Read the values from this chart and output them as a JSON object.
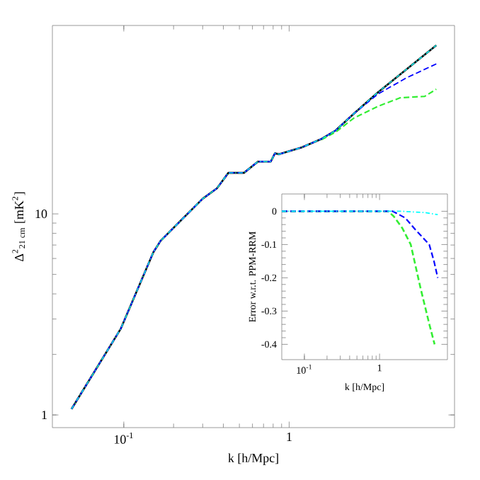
{
  "chart_data": [
    {
      "type": "line",
      "xlabel": "k [h/Mpc]",
      "ylabel": "Δ$^{2}$$_{21 cm}$ [mK$^{2}$]",
      "log": "xy",
      "xlim": [
        0.037,
        10
      ],
      "ylim": [
        0.865,
        86.5
      ],
      "xticks": [
        {
          "value": 0.1,
          "label": "10$^{-1}$"
        },
        1
      ],
      "yticks": [
        1,
        10
      ],
      "series": [
        {
          "color": "#000000",
          "line_style": "solid",
          "x": [
            0.0483,
            0.096,
            0.151,
            0.167,
            0.3,
            0.366,
            0.429,
            0.533,
            0.648,
            0.774,
            0.82,
            0.87,
            1.19,
            1.57,
            1.91,
            2.47,
            3.45,
            7.76
          ],
          "values": [
            1.07,
            2.69,
            6.45,
            7.35,
            11.9,
            13.4,
            16.0,
            16.0,
            18.2,
            18.2,
            20.0,
            19.8,
            21.4,
            23.6,
            26.0,
            31.6,
            40.3,
            68.9
          ]
        },
        {
          "color": "#33ee33",
          "line_style": "dashed",
          "x": [
            1.57,
            1.91,
            2.47,
            3.45,
            4.7,
            6.6,
            7.76
          ],
          "values": [
            23.4,
            25.5,
            30.0,
            34.3,
            37.8,
            38.4,
            41.7
          ]
        },
        {
          "color": "#0000ff",
          "line_style": "dashed",
          "x": [
            0.0483,
            0.096,
            0.151,
            0.167,
            0.3,
            0.366,
            0.429,
            0.533,
            0.648,
            0.774,
            0.82,
            0.87,
            1.19,
            1.57,
            1.91,
            2.47,
            3.45,
            5.1,
            7.76
          ],
          "values": [
            1.07,
            2.69,
            6.45,
            7.35,
            11.9,
            13.4,
            16.0,
            16.0,
            18.2,
            18.2,
            20.0,
            19.8,
            21.4,
            23.6,
            26.0,
            31.6,
            39.5,
            47.4,
            55.7
          ]
        },
        {
          "color": "#00ffff",
          "line_style": "dotted",
          "x": [
            0.0483,
            0.096,
            0.151,
            0.167,
            0.3,
            0.366,
            0.429,
            0.533,
            0.648,
            0.774,
            0.82,
            0.87,
            1.19,
            1.57,
            1.91,
            2.47,
            3.45,
            7.76
          ],
          "values": [
            1.07,
            2.69,
            6.45,
            7.35,
            11.9,
            13.4,
            16.0,
            16.0,
            18.2,
            18.2,
            20.0,
            19.8,
            21.4,
            23.6,
            26.0,
            31.6,
            40.3,
            68.9
          ]
        }
      ]
    },
    {
      "type": "line",
      "xlabel": "k [h/Mpc]",
      "ylabel": "Error w.r.t. PPM-RRM",
      "log": "x",
      "xlim": [
        0.05,
        8
      ],
      "ylim": [
        -0.446,
        0.052
      ],
      "xticks": [
        {
          "value": 0.1,
          "label": "10$^{-1}$"
        },
        1
      ],
      "yticks": [
        0,
        -0.1,
        -0.2,
        -0.3,
        -0.4
      ],
      "series": [
        {
          "color": "#33ee33",
          "line_style": "dashed",
          "x": [
            0.05,
            1.3,
            1.54,
            2.0,
            2.6,
            3.5,
            4.6,
            5.4
          ],
          "values": [
            0,
            0,
            -0.015,
            -0.05,
            -0.1,
            -0.23,
            -0.34,
            -0.4
          ]
        },
        {
          "color": "#0000ff",
          "line_style": "dashed",
          "x": [
            0.05,
            1.5,
            2.2,
            2.96,
            3.8,
            4.58,
            5.3,
            5.94
          ],
          "values": [
            0,
            0,
            -0.02,
            -0.054,
            -0.08,
            -0.1,
            -0.15,
            -0.2
          ]
        },
        {
          "color": "#00ffff",
          "line_style": "dotted",
          "x": [
            0.05,
            2.0,
            4.0,
            5.94
          ],
          "values": [
            0,
            0,
            -0.004,
            -0.01
          ]
        }
      ]
    }
  ]
}
